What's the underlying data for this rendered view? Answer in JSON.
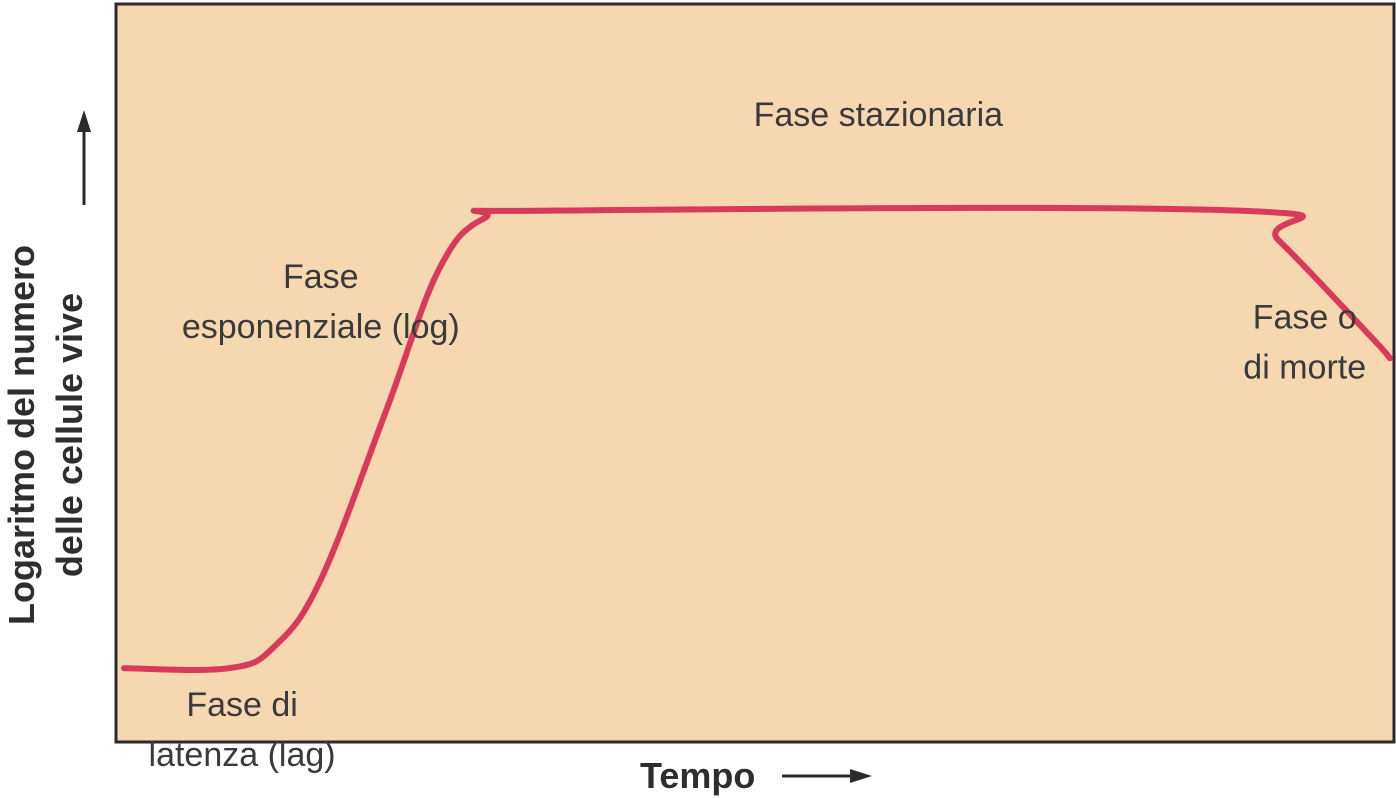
{
  "chart_data": {
    "type": "line",
    "title": "",
    "xlabel": "Tempo",
    "ylabel": [
      "Logaritmo del numero",
      "delle cellule vive"
    ],
    "grid": false,
    "background_color": "#f6d8b0",
    "line_color": "#d93a5a",
    "axis_color": "#2a2a2a",
    "series": [
      {
        "values": [
          [
            0.0,
            1.0
          ],
          [
            1.6,
            1.0
          ],
          [
            2.3,
            1.3
          ],
          [
            3.0,
            2.2
          ],
          [
            4.0,
            4.5
          ],
          [
            4.8,
            6.4
          ],
          [
            5.5,
            7.1
          ],
          [
            6.5,
            7.2
          ],
          [
            17.0,
            7.2
          ],
          [
            17.6,
            6.8
          ],
          [
            19.0,
            5.5
          ],
          [
            19.3,
            5.2
          ]
        ]
      }
    ],
    "xlim": [
      0,
      19.3
    ],
    "ylim": [
      0,
      10
    ],
    "annotations": [
      {
        "lines": [
          "Fase di",
          "latenza (lag)"
        ],
        "x": 1.8,
        "y": 0.35
      },
      {
        "lines": [
          "Fase",
          "esponenziale (log)"
        ],
        "x": 3.0,
        "y": 6.15
      },
      {
        "lines": [
          "Fase stazionaria"
        ],
        "x": 11.5,
        "y": 8.35
      },
      {
        "lines": [
          "Fase o",
          "di morte"
        ],
        "x": 18.0,
        "y": 5.6
      }
    ]
  }
}
